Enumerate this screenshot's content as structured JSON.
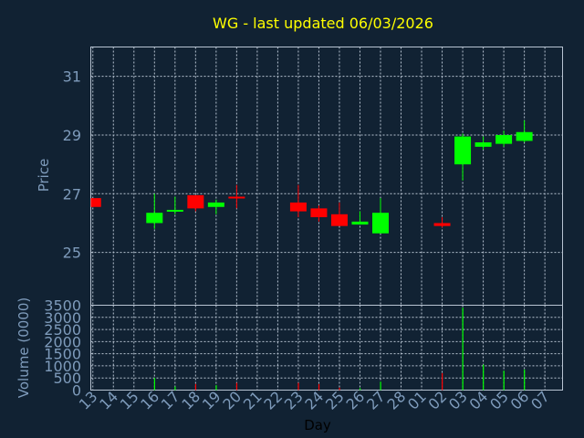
{
  "chart_data": {
    "type": "candlestick",
    "title": "WG - last updated 06/03/2026",
    "xlabel": "Day",
    "price_panel": {
      "ylabel": "Price",
      "ylim": [
        23.2,
        32.0
      ],
      "yticks": [
        25,
        27,
        29,
        31
      ]
    },
    "volume_panel": {
      "ylabel": "Volume (0000)",
      "ylim": [
        0,
        3500
      ],
      "yticks": [
        0,
        500,
        1000,
        1500,
        2000,
        2500,
        3000,
        3500
      ]
    },
    "categories": [
      "13",
      "14",
      "15",
      "16",
      "17",
      "18",
      "19",
      "20",
      "21",
      "22",
      "23",
      "24",
      "25",
      "26",
      "27",
      "28",
      "01",
      "02",
      "03",
      "04",
      "05",
      "06",
      "07"
    ],
    "candles": [
      {
        "day": "13",
        "open": 26.85,
        "high": 26.85,
        "low": 26.55,
        "close": 26.55,
        "volume": 0
      },
      {
        "day": "16",
        "open": 26.0,
        "high": 27.0,
        "low": 25.8,
        "close": 26.35,
        "volume": 500
      },
      {
        "day": "17",
        "open": 26.4,
        "high": 26.9,
        "low": 26.3,
        "close": 26.45,
        "volume": 150
      },
      {
        "day": "18",
        "open": 26.95,
        "high": 26.95,
        "low": 26.4,
        "close": 26.5,
        "volume": 250
      },
      {
        "day": "19",
        "open": 26.55,
        "high": 26.8,
        "low": 26.3,
        "close": 26.7,
        "volume": 200
      },
      {
        "day": "20",
        "open": 26.9,
        "high": 27.3,
        "low": 26.5,
        "close": 26.85,
        "volume": 300
      },
      {
        "day": "23",
        "open": 26.7,
        "high": 27.3,
        "low": 26.2,
        "close": 26.4,
        "volume": 300
      },
      {
        "day": "24",
        "open": 26.5,
        "high": 26.6,
        "low": 26.05,
        "close": 26.2,
        "volume": 250
      },
      {
        "day": "25",
        "open": 26.3,
        "high": 26.7,
        "low": 25.9,
        "close": 25.9,
        "volume": 100
      },
      {
        "day": "26",
        "open": 25.95,
        "high": 26.4,
        "low": 25.95,
        "close": 26.05,
        "volume": 80
      },
      {
        "day": "27",
        "open": 25.65,
        "high": 26.85,
        "low": 25.65,
        "close": 26.35,
        "volume": 350
      },
      {
        "day": "02",
        "open": 26.0,
        "high": 26.2,
        "low": 25.85,
        "close": 25.9,
        "volume": 700
      },
      {
        "day": "03",
        "open": 28.0,
        "high": 29.05,
        "low": 27.45,
        "close": 28.95,
        "volume": 3400
      },
      {
        "day": "04",
        "open": 28.6,
        "high": 28.95,
        "low": 28.5,
        "close": 28.75,
        "volume": 1050
      },
      {
        "day": "05",
        "open": 28.7,
        "high": 29.15,
        "low": 28.6,
        "close": 29.0,
        "volume": 800
      },
      {
        "day": "06",
        "open": 28.8,
        "high": 29.5,
        "low": 28.75,
        "close": 29.1,
        "volume": 850
      }
    ],
    "colors": {
      "background": "#112233",
      "up": "#00ff00",
      "down": "#ff0000",
      "title": "#ffff00",
      "ticks": "#7e9bbb",
      "grid": "#b8c4d2"
    }
  }
}
